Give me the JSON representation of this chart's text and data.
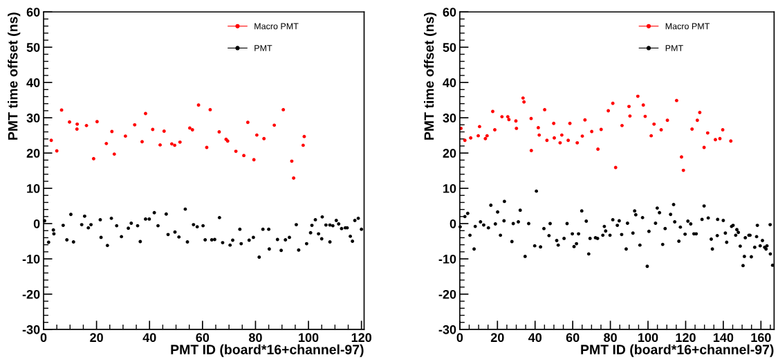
{
  "chart_data": [
    {
      "type": "scatter",
      "xlabel": "PMT ID (board*16+channel-97)",
      "ylabel": "PMT time offset (ns)",
      "xlim": [
        0,
        121
      ],
      "xticks": [
        0,
        20,
        40,
        60,
        80,
        100,
        120
      ],
      "ylim": [
        -30,
        60
      ],
      "yticks": [
        -30,
        -20,
        -10,
        0,
        10,
        20,
        30,
        40,
        50,
        60
      ],
      "grid": false,
      "legend": "top right",
      "marker": "circle",
      "series": [
        {
          "name": "Macro PMT",
          "color": "#ff0000",
          "x": [
            2.9,
            5.0,
            6.8,
            9.8,
            12.7,
            12.6,
            16.2,
            18.9,
            20.2,
            23.7,
            25.8,
            26.7,
            30.9,
            34.4,
            37.2,
            38.5,
            41.2,
            44.0,
            45.5,
            48.4,
            49.5,
            51.5,
            55.2,
            56.2,
            58.5,
            61.6,
            62.9,
            66.3,
            68.9,
            69.5,
            72.6,
            75.6,
            77.1,
            79.4,
            80.5,
            83.2,
            87.1,
            90.5,
            93.7,
            94.4,
            98.0,
            98.4
          ],
          "values": [
            23.6,
            20.6,
            32.2,
            28.8,
            28.2,
            26.8,
            27.8,
            18.4,
            28.9,
            22.7,
            26.1,
            19.7,
            24.8,
            28.0,
            23.2,
            31.2,
            26.7,
            22.3,
            26.2,
            22.6,
            22.2,
            23.1,
            27.1,
            26.6,
            33.6,
            21.6,
            32.3,
            26.0,
            23.9,
            23.4,
            20.5,
            19.3,
            28.7,
            18.1,
            25.1,
            24.1,
            27.9,
            32.3,
            17.7,
            12.9,
            22.2,
            24.7
          ]
        },
        {
          "name": "PMT",
          "color": "#000000",
          "x": [
            0.4,
            1.9,
            3.7,
            3.9,
            7.4,
            8.8,
            10.3,
            11.3,
            14.4,
            15.5,
            16.9,
            17.9,
            21.4,
            21.7,
            24.1,
            25.6,
            27.6,
            29.4,
            32.0,
            33.1,
            35.5,
            36.5,
            38.5,
            39.9,
            41.8,
            43.2,
            46.3,
            47.0,
            49.6,
            51.1,
            53.5,
            54.3,
            56.6,
            58.0,
            60.2,
            61.0,
            63.5,
            64.6,
            66.4,
            67.6,
            70.4,
            71.4,
            74.1,
            74.6,
            77.6,
            79.2,
            81.4,
            82.8,
            85.0,
            85.2,
            88.3,
            89.7,
            91.3,
            92.8,
            95.4,
            96.3,
            99.3,
            100.8,
            101.3,
            102.6,
            103.8,
            105.0,
            105.2,
            106.6,
            108.1,
            108.1,
            109.2,
            110.5,
            111.4,
            112.5,
            113.9,
            114.6,
            115.8,
            116.6,
            117.5,
            118.8,
            120.0
          ],
          "values": [
            0.8,
            -5.3,
            -1.8,
            -2.9,
            -0.5,
            -4.6,
            2.6,
            -5.2,
            -0.3,
            2.1,
            -1.2,
            -0.3,
            1.1,
            -3.9,
            -6.2,
            1.5,
            -0.6,
            -3.7,
            -1.3,
            0.1,
            -0.6,
            -5.1,
            1.3,
            1.3,
            3.1,
            -0.6,
            2.7,
            -3.1,
            -2.4,
            -3.8,
            4.1,
            -5.2,
            -0.3,
            -0.9,
            -0.6,
            -4.6,
            -4.6,
            -4.5,
            1.7,
            -5.4,
            -6.1,
            -4.7,
            -1.6,
            -5.7,
            -4.7,
            -3.9,
            -9.5,
            -1.6,
            -1.6,
            -7.2,
            -4.5,
            -7.6,
            -4.6,
            -3.9,
            -0.3,
            -7.5,
            -5.7,
            -2.6,
            -0.5,
            1.1,
            -2.9,
            -4.3,
            1.9,
            -0.4,
            -0.4,
            -5.2,
            -0.6,
            0.9,
            -0.1,
            -1.4,
            -1.2,
            -1.2,
            -3.6,
            -5.0,
            0.9,
            1.5,
            -1.6
          ]
        }
      ]
    },
    {
      "type": "scatter",
      "xlabel": "PMT ID (board*16+channel-97)",
      "ylabel": "PMT time offset (ns)",
      "xlim": [
        0,
        167
      ],
      "xticks": [
        0,
        20,
        40,
        60,
        80,
        100,
        120,
        140,
        160
      ],
      "ylim": [
        -30,
        60
      ],
      "yticks": [
        -30,
        -20,
        -10,
        0,
        10,
        20,
        30,
        40,
        50,
        60
      ],
      "grid": false,
      "legend": "top right",
      "marker": "circle",
      "series": [
        {
          "name": "Macro PMT",
          "color": "#ff0000",
          "x": [
            0.6,
            2.7,
            5.8,
            9.8,
            10.5,
            13.6,
            14.5,
            17.5,
            18.6,
            22.4,
            25.5,
            26.1,
            29.8,
            30.1,
            33.6,
            34.1,
            37.9,
            38.0,
            41.7,
            42.2,
            45.1,
            46.3,
            49.9,
            50.2,
            53.3,
            54.2,
            57.6,
            58.5,
            62.4,
            65.1,
            66.5,
            70.1,
            73.4,
            75.1,
            78.9,
            81.3,
            82.8,
            86.2,
            89.9,
            90.4,
            94.6,
            97.5,
            98.5,
            101.7,
            103.2,
            107.0,
            110.3,
            115.2,
            117.8,
            118.8,
            123.4,
            126.2,
            127.5,
            129.8,
            131.7,
            135.8,
            138.2,
            139.7,
            144.0
          ],
          "values": [
            27.0,
            23.6,
            24.3,
            24.9,
            27.5,
            24.1,
            24.9,
            31.8,
            26.6,
            30.3,
            30.3,
            29.5,
            29.1,
            27.0,
            35.6,
            34.5,
            29.8,
            20.7,
            27.2,
            25.1,
            32.3,
            23.6,
            28.4,
            24.3,
            22.9,
            25.1,
            23.6,
            28.4,
            22.9,
            24.8,
            29.4,
            26.1,
            21.1,
            26.7,
            32.0,
            34.1,
            15.9,
            27.8,
            33.2,
            30.5,
            36.1,
            33.6,
            30.4,
            24.9,
            28.2,
            26.6,
            29.3,
            34.9,
            18.9,
            15.1,
            26.8,
            29.3,
            31.5,
            21.6,
            25.7,
            23.8,
            24.1,
            26.6,
            23.4
          ]
        },
        {
          "name": "PMT",
          "color": "#000000",
          "x": [
            0.2,
            2.7,
            4.2,
            5.4,
            7.6,
            8.2,
            11.0,
            12.7,
            15.2,
            16.5,
            18.9,
            20.1,
            21.6,
            23.7,
            23.5,
            27.7,
            28.4,
            31.1,
            32.1,
            34.7,
            36.6,
            39.8,
            40.7,
            42.9,
            44.7,
            47.4,
            48.0,
            51.5,
            52.3,
            55.4,
            57.0,
            59.8,
            60.7,
            62.0,
            63.1,
            64.8,
            67.2,
            68.5,
            69.2,
            72.1,
            73.2,
            76.0,
            76.8,
            77.5,
            79.8,
            81.3,
            83.7,
            84.7,
            86.0,
            88.4,
            89.1,
            92.0,
            92.9,
            93.5,
            95.7,
            97.1,
            99.6,
            100.5,
            104.0,
            104.9,
            106.1,
            107.8,
            109.1,
            112.0,
            113.6,
            114.2,
            116.4,
            117.2,
            119.7,
            121.2,
            122.7,
            124.4,
            125.6,
            128.7,
            129.8,
            132.0,
            133.6,
            134.2,
            136.8,
            137.0,
            140.0,
            141.1,
            141.8,
            144.4,
            145.2,
            146.6,
            147.2,
            148.0,
            149.0,
            150.5,
            151.2,
            151.7,
            153.6,
            154.2,
            154.9,
            156.7,
            157.7,
            158.1,
            159.6,
            160.8,
            162.0,
            162.7,
            163.2,
            164.9,
            165.0,
            166.2
          ],
          "values": [
            -0.9,
            2.0,
            2.9,
            -3.3,
            -7.2,
            -0.8,
            0.5,
            -0.4,
            -1.2,
            5.2,
            -0.1,
            3.3,
            -3.3,
            6.3,
            0.8,
            -5.1,
            0,
            0.5,
            3.8,
            -9.3,
            0,
            -6.3,
            9.2,
            -6.6,
            -1.4,
            -3.4,
            0,
            -4.8,
            -6.1,
            -4.2,
            0,
            -2.9,
            -6.5,
            -5.7,
            -2.9,
            3.6,
            0.7,
            -8.6,
            -4.2,
            -4.0,
            -4.2,
            -3.3,
            -0.8,
            -2.1,
            -3.3,
            1.1,
            -0.5,
            0.8,
            -3.1,
            -7.2,
            0.1,
            -2.7,
            3.6,
            2.5,
            -6.1,
            1.7,
            -12.1,
            -2.2,
            0.1,
            4.4,
            3.1,
            -5.9,
            -1.4,
            2.6,
            5.4,
            0.5,
            -5.0,
            -1.0,
            -3.0,
            0.7,
            -0.1,
            -2.9,
            -2.9,
            1.2,
            5.0,
            1.6,
            -4.4,
            -7.2,
            -3.4,
            1.2,
            0.9,
            -2.7,
            -5.3,
            -0.8,
            -0.5,
            -3.3,
            -1.7,
            -2.5,
            -6.4,
            -11.9,
            -9.3,
            -4.0,
            -3.3,
            -3.3,
            -9.4,
            -6.7,
            -3.7,
            -0.5,
            -6.3,
            -4.8,
            -6.7,
            -7.2,
            -6.3,
            -0.3,
            -8.6,
            -11.8
          ]
        }
      ]
    }
  ]
}
